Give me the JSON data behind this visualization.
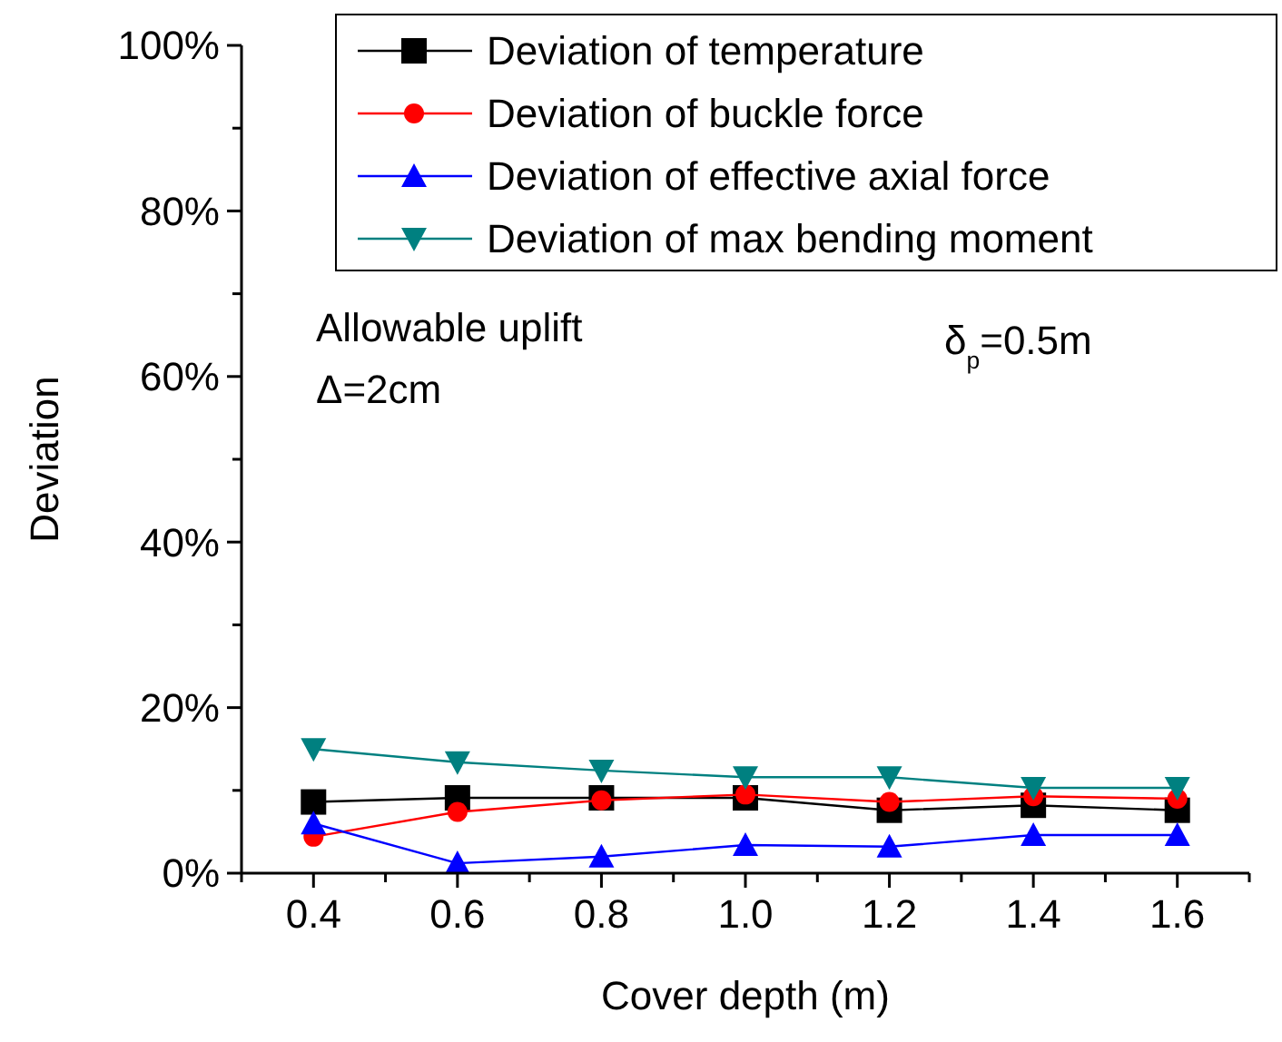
{
  "chart_data": {
    "type": "line",
    "xlabel": "Cover depth (m)",
    "ylabel": "Deviation",
    "x": [
      0.4,
      0.6,
      0.8,
      1.0,
      1.2,
      1.4,
      1.6
    ],
    "series": [
      {
        "name": "Deviation of temperature",
        "color": "#000000",
        "marker": "square",
        "values": [
          8.6,
          9.1,
          9.1,
          9.1,
          7.6,
          8.2,
          7.6
        ]
      },
      {
        "name": "Deviation of buckle force",
        "color": "#ff0000",
        "marker": "circle",
        "values": [
          4.4,
          7.4,
          8.8,
          9.5,
          8.6,
          9.3,
          9.0
        ]
      },
      {
        "name": "Deviation of effective axial force",
        "color": "#0000ff",
        "marker": "triangle",
        "values": [
          6.0,
          1.2,
          2.0,
          3.4,
          3.2,
          4.6,
          4.6
        ]
      },
      {
        "name": "Deviation of max bending moment",
        "color": "#008080",
        "marker": "triangle-down",
        "values": [
          15.0,
          13.4,
          12.4,
          11.6,
          11.6,
          10.3,
          10.3
        ]
      }
    ],
    "xlim": [
      0.3,
      1.7
    ],
    "xticks": [
      {
        "value": 0.3,
        "label": null
      },
      0.4,
      {
        "value": 0.5,
        "label": null
      },
      0.6,
      {
        "value": 0.7,
        "label": null
      },
      0.8,
      {
        "value": 0.9,
        "label": null
      },
      {
        "value": 1.0,
        "label": "1.0"
      },
      {
        "value": 1.1,
        "label": null
      },
      1.2,
      {
        "value": 1.3,
        "label": null
      },
      1.4,
      {
        "value": 1.5,
        "label": null
      },
      1.6,
      {
        "value": 1.7,
        "label": null
      }
    ],
    "ylim": [
      0,
      100
    ],
    "yticks": [
      {
        "value": 0,
        "label": "0%"
      },
      {
        "value": 10,
        "label": null
      },
      {
        "value": 20,
        "label": "20%"
      },
      {
        "value": 30,
        "label": null
      },
      {
        "value": 40,
        "label": "40%"
      },
      {
        "value": 50,
        "label": null
      },
      {
        "value": 60,
        "label": "60%"
      },
      {
        "value": 70,
        "label": null
      },
      {
        "value": 80,
        "label": "80%"
      },
      {
        "value": 90,
        "label": null
      },
      {
        "value": 100,
        "label": "100%"
      }
    ],
    "annotations": [
      "Allowable uplift",
      "Δ=2cm",
      "δ$_{p}$=0.5m"
    ],
    "legend": "top right",
    "grid": false,
    "line_style": "solid"
  }
}
